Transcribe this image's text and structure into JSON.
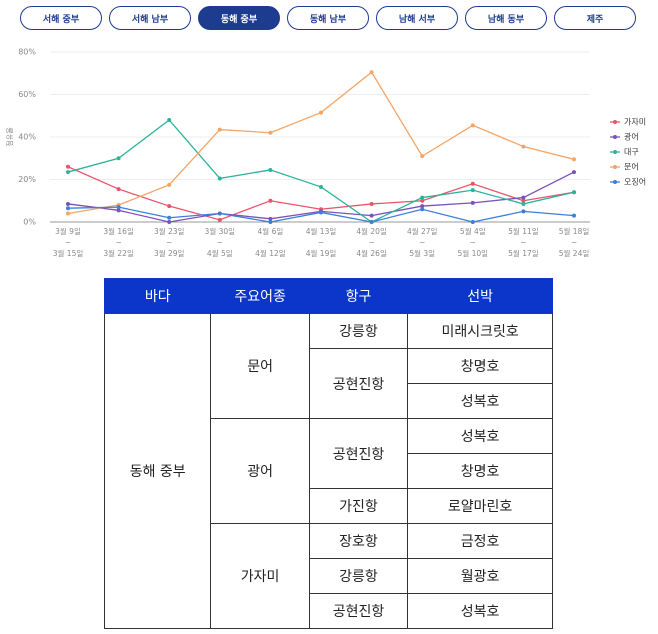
{
  "tabs": {
    "items": [
      "서해 중부",
      "서해 남부",
      "동해 중부",
      "동해 남부",
      "남해 서부",
      "남해 동부",
      "제주"
    ],
    "active": 2
  },
  "chart_data": {
    "type": "line",
    "y_label": "점유율",
    "categories": [
      "3월 9일\n~\n3월 15일",
      "3월 16일\n~\n3월 22일",
      "3월 23일\n~\n3월 29일",
      "3월 30일\n~\n4월 5일",
      "4월 6일\n~\n4월 12일",
      "4월 13일\n~\n4월 19일",
      "4월 20일\n~\n4월 26일",
      "4월 27일\n~\n5월 3일",
      "5월 4일\n~\n5월 10일",
      "5월 11일\n~\n5월 17일",
      "5월 18일\n~\n5월 24일"
    ],
    "series": [
      {
        "name": "가자미",
        "color": "#e9546b",
        "values": [
          26,
          15.5,
          7.5,
          1,
          10,
          6,
          8.5,
          10,
          18,
          10,
          14
        ]
      },
      {
        "name": "광어",
        "color": "#7b52b9",
        "values": [
          8.5,
          5.5,
          0,
          4,
          1.5,
          5,
          3,
          7.5,
          9,
          11.5,
          23.5
        ]
      },
      {
        "name": "대구",
        "color": "#2bb39b",
        "values": [
          23.5,
          30,
          48,
          20.5,
          24.5,
          16.5,
          0,
          11.5,
          15,
          8.5,
          14
        ]
      },
      {
        "name": "문어",
        "color": "#f4a566",
        "values": [
          4,
          8,
          17.5,
          43.5,
          42,
          51.5,
          70.5,
          31,
          45.5,
          35.5,
          29.5
        ]
      },
      {
        "name": "오징어",
        "color": "#3b7fd9",
        "values": [
          6.5,
          7,
          2,
          4,
          0,
          4.5,
          0,
          6,
          0,
          5,
          3
        ]
      }
    ],
    "ylim": [
      0,
      80
    ],
    "yticks": [
      {
        "value": 0,
        "label": "0%"
      },
      {
        "value": 20,
        "label": "20%"
      },
      {
        "value": 40,
        "label": "40%"
      },
      {
        "value": 60,
        "label": "60%"
      },
      {
        "value": 80,
        "label": "80%"
      }
    ],
    "grid": true,
    "legend": "right"
  },
  "table": {
    "columns": [
      "바다",
      "주요어종",
      "항구",
      "선박"
    ],
    "sea": "동해 중부",
    "species": [
      {
        "name": "문어",
        "ports": [
          {
            "name": "강릉항",
            "vessels": [
              "미래시크릿호"
            ]
          },
          {
            "name": "공현진항",
            "vessels": [
              "창명호",
              "성복호"
            ]
          }
        ]
      },
      {
        "name": "광어",
        "ports": [
          {
            "name": "공현진항",
            "vessels": [
              "성복호",
              "창명호"
            ]
          },
          {
            "name": "가진항",
            "vessels": [
              "로얄마린호"
            ]
          }
        ]
      },
      {
        "name": "가자미",
        "ports": [
          {
            "name": "장호항",
            "vessels": [
              "금정호"
            ]
          },
          {
            "name": "강릉항",
            "vessels": [
              "월광호"
            ]
          },
          {
            "name": "공현진항",
            "vessels": [
              "성복호"
            ]
          }
        ]
      }
    ]
  }
}
